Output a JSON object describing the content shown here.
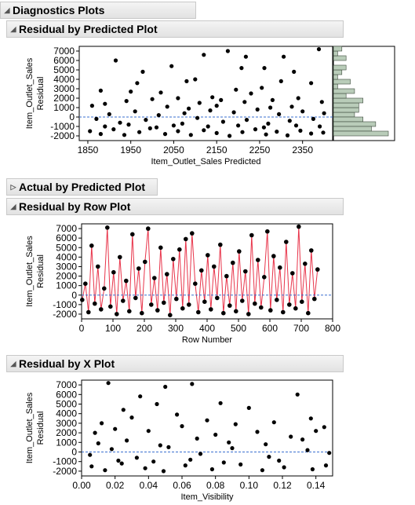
{
  "report": {
    "title": "Diagnostics Plots",
    "outlines": [
      {
        "title": "Residual by Predicted Plot",
        "expanded": true
      },
      {
        "title": "Actual by Predicted Plot",
        "expanded": false
      },
      {
        "title": "Residual by Row Plot",
        "expanded": true
      },
      {
        "title": "Residual by X Plot",
        "expanded": true
      }
    ]
  },
  "chart_data": [
    {
      "type": "scatter",
      "title": "Residual by Predicted Plot",
      "xlabel": "Item_Outlet_Sales Predicted",
      "ylabel": "Item_Outlet_Sales Residual",
      "xlim": [
        1830,
        2420
      ],
      "ylim": [
        -2500,
        7500
      ],
      "x_ticks": [
        "1850",
        "1950",
        "2050",
        "2150",
        "2250",
        "2350"
      ],
      "y_ticks": [
        "7000",
        "6000",
        "5000",
        "4000",
        "3000",
        "2000",
        "1000",
        "0",
        "-1000",
        "-2000"
      ],
      "reference_line_y": 0,
      "marginal_histogram": "right",
      "points": [
        [
          1915,
          6000
        ],
        [
          1978,
          4800
        ],
        [
          2045,
          5400
        ],
        [
          2120,
          6600
        ],
        [
          2176,
          7000
        ],
        [
          2218,
          6400
        ],
        [
          2306,
          6400
        ],
        [
          2388,
          7200
        ],
        [
          2208,
          5200
        ],
        [
          2261,
          5200
        ],
        [
          2330,
          4800
        ],
        [
          2080,
          3800
        ],
        [
          1965,
          3600
        ],
        [
          1880,
          2800
        ],
        [
          1950,
          2700
        ],
        [
          2020,
          2600
        ],
        [
          2100,
          4000
        ],
        [
          2300,
          3800
        ],
        [
          2370,
          3600
        ],
        [
          2140,
          2100
        ],
        [
          2230,
          2500
        ],
        [
          2195,
          2900
        ],
        [
          2255,
          3100
        ],
        [
          1860,
          1200
        ],
        [
          1890,
          1400
        ],
        [
          1940,
          1700
        ],
        [
          2000,
          1900
        ],
        [
          2060,
          2000
        ],
        [
          2110,
          1500
        ],
        [
          2160,
          1800
        ],
        [
          2215,
          1600
        ],
        [
          2280,
          1800
        ],
        [
          2340,
          2000
        ],
        [
          2395,
          1600
        ],
        [
          2035,
          1100
        ],
        [
          2085,
          900
        ],
        [
          2150,
          1200
        ],
        [
          2275,
          1000
        ],
        [
          2325,
          1100
        ],
        [
          1870,
          -200
        ],
        [
          1900,
          300
        ],
        [
          1925,
          -600
        ],
        [
          1960,
          600
        ],
        [
          1985,
          -300
        ],
        [
          2015,
          200
        ],
        [
          2050,
          -900
        ],
        [
          2075,
          400
        ],
        [
          2105,
          -100
        ],
        [
          2135,
          700
        ],
        [
          2165,
          -500
        ],
        [
          2190,
          500
        ],
        [
          2220,
          -300
        ],
        [
          2245,
          800
        ],
        [
          2270,
          -700
        ],
        [
          2295,
          300
        ],
        [
          2320,
          -400
        ],
        [
          2350,
          600
        ],
        [
          2375,
          -200
        ],
        [
          2400,
          400
        ],
        [
          1855,
          -1500
        ],
        [
          1880,
          -1800
        ],
        [
          1910,
          -1300
        ],
        [
          1935,
          -1900
        ],
        [
          1970,
          -1600
        ],
        [
          1995,
          -1200
        ],
        [
          2030,
          -1800
        ],
        [
          2060,
          -1500
        ],
        [
          2090,
          -1900
        ],
        [
          2120,
          -1400
        ],
        [
          2150,
          -1700
        ],
        [
          2180,
          -2000
        ],
        [
          2210,
          -1600
        ],
        [
          2240,
          -1300
        ],
        [
          2265,
          -1850
        ],
        [
          2290,
          -1550
        ],
        [
          2315,
          -1950
        ],
        [
          2345,
          -1450
        ],
        [
          2370,
          -1750
        ],
        [
          2398,
          -1650
        ],
        [
          1890,
          -1000
        ],
        [
          1945,
          -800
        ],
        [
          2010,
          -1100
        ],
        [
          2070,
          -700
        ],
        [
          2130,
          -1000
        ],
        [
          2200,
          -900
        ],
        [
          2260,
          -1100
        ],
        [
          2335,
          -900
        ],
        [
          2390,
          -1000
        ]
      ]
    },
    {
      "type": "line",
      "title": "Residual by Row Plot",
      "xlabel": "Row Number",
      "ylabel": "Item_Outlet_Sales Residual",
      "xlim": [
        0,
        800
      ],
      "ylim": [
        -2500,
        7500
      ],
      "x_ticks": [
        "0",
        "100",
        "200",
        "300",
        "400",
        "500",
        "600",
        "700",
        "800"
      ],
      "y_ticks": [
        "7000",
        "6000",
        "5000",
        "4000",
        "3000",
        "2000",
        "1000",
        "0",
        "-1000",
        "-2000"
      ],
      "reference_line_y": 0,
      "points": [
        [
          2,
          -500
        ],
        [
          12,
          1200
        ],
        [
          22,
          -1800
        ],
        [
          32,
          5200
        ],
        [
          42,
          -900
        ],
        [
          52,
          3000
        ],
        [
          62,
          -1500
        ],
        [
          72,
          700
        ],
        [
          82,
          7100
        ],
        [
          92,
          -1200
        ],
        [
          102,
          2400
        ],
        [
          112,
          -2000
        ],
        [
          122,
          4000
        ],
        [
          132,
          -600
        ],
        [
          142,
          1500
        ],
        [
          152,
          -1700
        ],
        [
          162,
          6400
        ],
        [
          172,
          -300
        ],
        [
          182,
          2800
        ],
        [
          192,
          -1900
        ],
        [
          202,
          3500
        ],
        [
          212,
          7000
        ],
        [
          222,
          -1000
        ],
        [
          232,
          1800
        ],
        [
          242,
          -1600
        ],
        [
          252,
          5000
        ],
        [
          262,
          -800
        ],
        [
          272,
          2200
        ],
        [
          282,
          -2100
        ],
        [
          292,
          3800
        ],
        [
          302,
          -400
        ],
        [
          312,
          4800
        ],
        [
          322,
          -1400
        ],
        [
          332,
          5900
        ],
        [
          342,
          -1000
        ],
        [
          352,
          6500
        ],
        [
          362,
          1200
        ],
        [
          372,
          -1800
        ],
        [
          382,
          2600
        ],
        [
          392,
          -700
        ],
        [
          402,
          4200
        ],
        [
          412,
          -1500
        ],
        [
          422,
          3000
        ],
        [
          432,
          -300
        ],
        [
          442,
          5300
        ],
        [
          452,
          -1900
        ],
        [
          462,
          2000
        ],
        [
          472,
          -1100
        ],
        [
          482,
          3400
        ],
        [
          492,
          -1700
        ],
        [
          502,
          4600
        ],
        [
          512,
          -600
        ],
        [
          522,
          2500
        ],
        [
          532,
          -2000
        ],
        [
          542,
          6300
        ],
        [
          552,
          -900
        ],
        [
          562,
          3700
        ],
        [
          572,
          -1300
        ],
        [
          582,
          1900
        ],
        [
          592,
          6700
        ],
        [
          602,
          -1600
        ],
        [
          612,
          4100
        ],
        [
          622,
          -500
        ],
        [
          632,
          2900
        ],
        [
          642,
          -1800
        ],
        [
          652,
          5600
        ],
        [
          662,
          -1000
        ],
        [
          672,
          2300
        ],
        [
          682,
          -1400
        ],
        [
          692,
          7200
        ],
        [
          702,
          -700
        ],
        [
          712,
          3300
        ],
        [
          722,
          -1900
        ],
        [
          732,
          4700
        ],
        [
          742,
          -400
        ],
        [
          752,
          2700
        ]
      ]
    },
    {
      "type": "scatter",
      "title": "Residual by X Plot",
      "xlabel": "Item_Visibility",
      "ylabel": "Item_Outlet_Sales Residual",
      "xlim": [
        0,
        0.15
      ],
      "ylim": [
        -2500,
        7500
      ],
      "x_ticks": [
        "0.00",
        "0.02",
        "0.04",
        "0.06",
        "0.08",
        "0.10",
        "0.12",
        "0.14"
      ],
      "y_ticks": [
        "7000",
        "6000",
        "5000",
        "4000",
        "3000",
        "2000",
        "1000",
        "0",
        "-1000",
        "-2000"
      ],
      "reference_line_y": 0,
      "points": [
        [
          0.016,
          7200
        ],
        [
          0.05,
          6800
        ],
        [
          0.066,
          7100
        ],
        [
          0.035,
          5800
        ],
        [
          0.129,
          6000
        ],
        [
          0.083,
          5100
        ],
        [
          0.025,
          4400
        ],
        [
          0.045,
          5000
        ],
        [
          0.1,
          4600
        ],
        [
          0.137,
          3500
        ],
        [
          0.012,
          3000
        ],
        [
          0.03,
          3600
        ],
        [
          0.057,
          3900
        ],
        [
          0.075,
          3300
        ],
        [
          0.092,
          2900
        ],
        [
          0.115,
          3100
        ],
        [
          0.145,
          2600
        ],
        [
          0.008,
          2000
        ],
        [
          0.02,
          2400
        ],
        [
          0.04,
          2200
        ],
        [
          0.06,
          2700
        ],
        [
          0.08,
          1800
        ],
        [
          0.105,
          2100
        ],
        [
          0.125,
          1600
        ],
        [
          0.14,
          2200
        ],
        [
          0.01,
          900
        ],
        [
          0.027,
          1200
        ],
        [
          0.047,
          700
        ],
        [
          0.069,
          1400
        ],
        [
          0.088,
          1000
        ],
        [
          0.11,
          800
        ],
        [
          0.132,
          1300
        ],
        [
          0.005,
          -300
        ],
        [
          0.018,
          300
        ],
        [
          0.033,
          -600
        ],
        [
          0.052,
          500
        ],
        [
          0.071,
          -200
        ],
        [
          0.09,
          400
        ],
        [
          0.112,
          -500
        ],
        [
          0.135,
          200
        ],
        [
          0.148,
          -100
        ],
        [
          0.006,
          -1500
        ],
        [
          0.014,
          -1900
        ],
        [
          0.024,
          -1200
        ],
        [
          0.038,
          -1700
        ],
        [
          0.049,
          -2000
        ],
        [
          0.062,
          -1400
        ],
        [
          0.078,
          -1800
        ],
        [
          0.095,
          -1300
        ],
        [
          0.108,
          -1900
        ],
        [
          0.121,
          -1600
        ],
        [
          0.138,
          -1800
        ],
        [
          0.146,
          -1400
        ],
        [
          0.022,
          -900
        ],
        [
          0.043,
          -1000
        ],
        [
          0.065,
          -800
        ],
        [
          0.085,
          -1100
        ],
        [
          0.118,
          -900
        ]
      ]
    }
  ]
}
